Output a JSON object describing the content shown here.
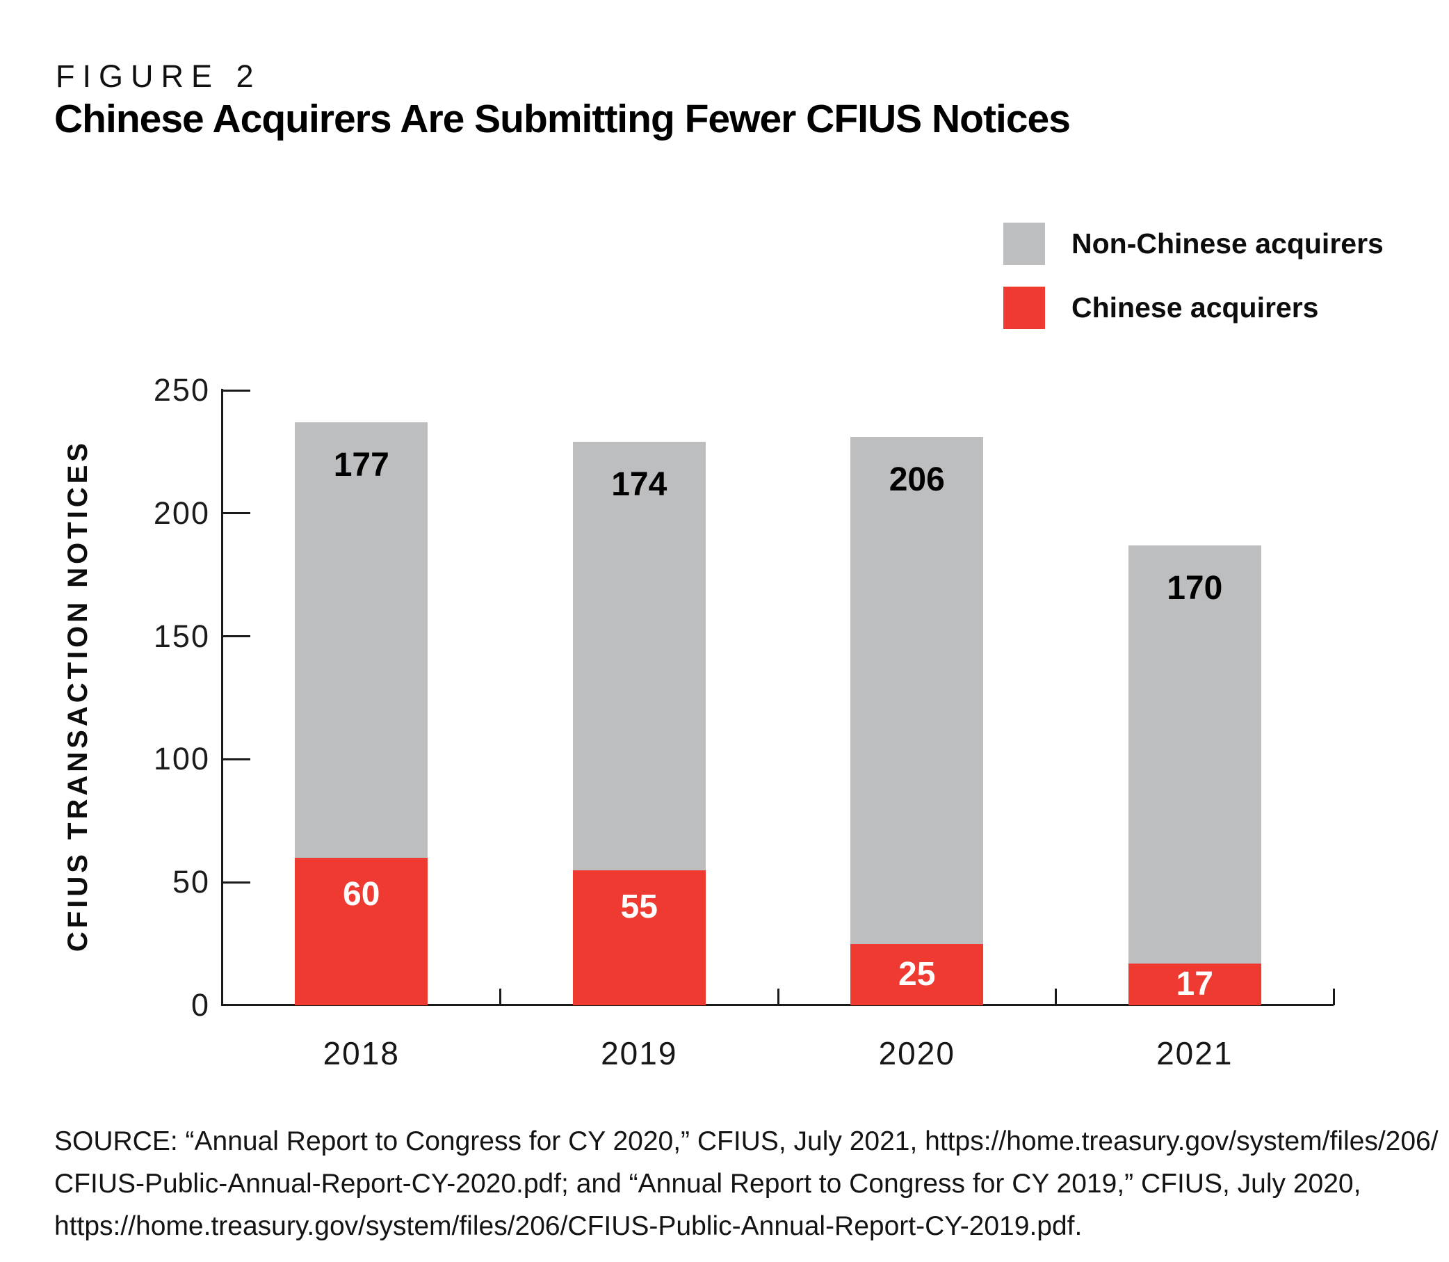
{
  "figure": {
    "eyebrow": "FIGURE 2",
    "title": "Chinese Acquirers Are Submitting Fewer CFIUS Notices"
  },
  "legend": {
    "items": [
      {
        "label": "Non-Chinese acquirers",
        "color": "#BDBEC0"
      },
      {
        "label": "Chinese acquirers",
        "color": "#EE3A31"
      }
    ]
  },
  "chart_data": {
    "type": "bar",
    "stacked": true,
    "title": "Chinese Acquirers Are Submitting Fewer CFIUS Notices",
    "categories": [
      "2018",
      "2019",
      "2020",
      "2021"
    ],
    "series": [
      {
        "name": "Chinese acquirers",
        "color": "#EE3A31",
        "label_color": "#FFFFFF",
        "values": [
          60,
          55,
          25,
          17
        ]
      },
      {
        "name": "Non-Chinese acquirers",
        "color": "#BDBEC0",
        "label_color": "#000000",
        "values": [
          177,
          174,
          206,
          170
        ]
      }
    ],
    "totals": [
      237,
      229,
      231,
      187
    ],
    "xlabel": "",
    "ylabel": "CFIUS TRANSACTION NOTICES",
    "ylim": [
      0,
      250
    ],
    "ytick_step": 50,
    "grid": false,
    "legend_position": "top-right"
  },
  "source": {
    "lines": [
      "SOURCE: “Annual Report to Congress for CY 2020,” CFIUS, July 2021, https://home.treasury.gov/system/files/206/",
      "CFIUS-Public-Annual-Report-CY-2020.pdf; and “Annual Report to Congress for CY 2019,” CFIUS, July 2020,",
      "https://home.treasury.gov/system/files/206/CFIUS-Public-Annual-Report-CY-2019.pdf."
    ]
  }
}
